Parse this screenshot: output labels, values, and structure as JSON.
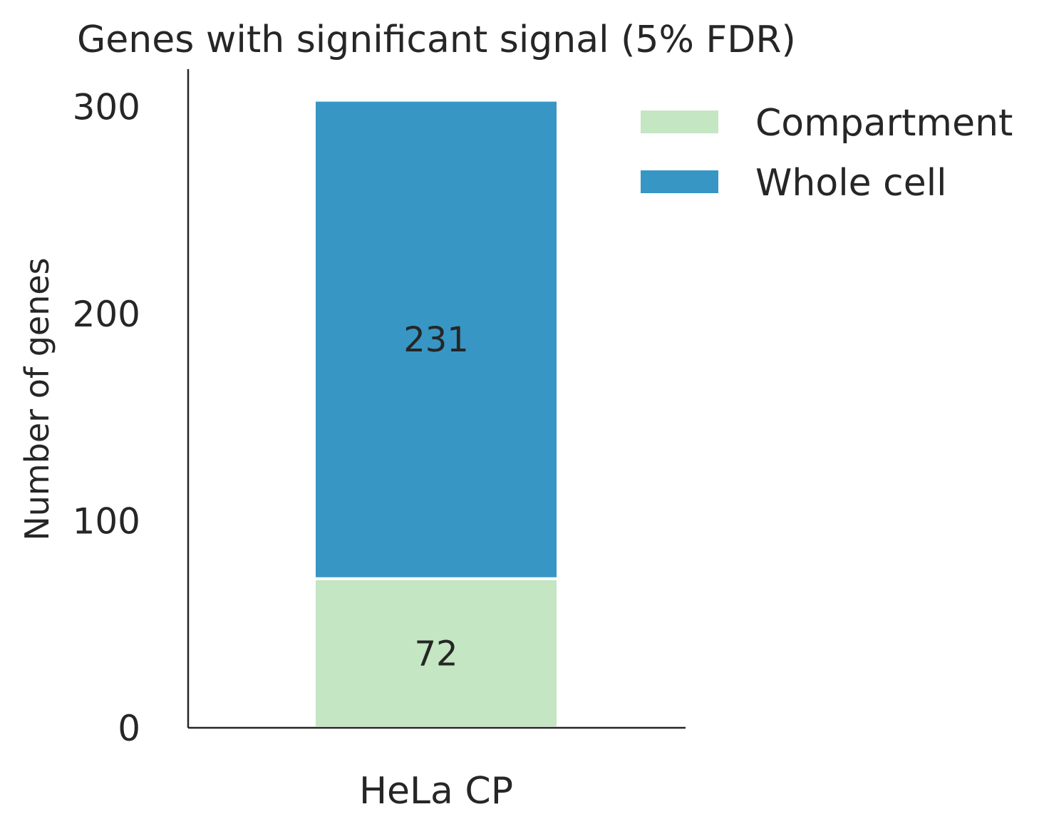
{
  "chart_data": {
    "type": "bar",
    "stacked": true,
    "title": "Genes with significant signal (5% FDR)",
    "xlabel": "",
    "ylabel": "Number of genes",
    "categories": [
      "HeLa CP"
    ],
    "ylim": [
      0,
      318
    ],
    "yticks": [
      0,
      100,
      200,
      300
    ],
    "grid": false,
    "legend_position": "top-right, outside plot",
    "series": [
      {
        "name": "Compartment",
        "values": [
          72
        ],
        "color": "#c4e6c3"
      },
      {
        "name": "Whole cell",
        "values": [
          231
        ],
        "color": "#3796c4"
      }
    ]
  }
}
